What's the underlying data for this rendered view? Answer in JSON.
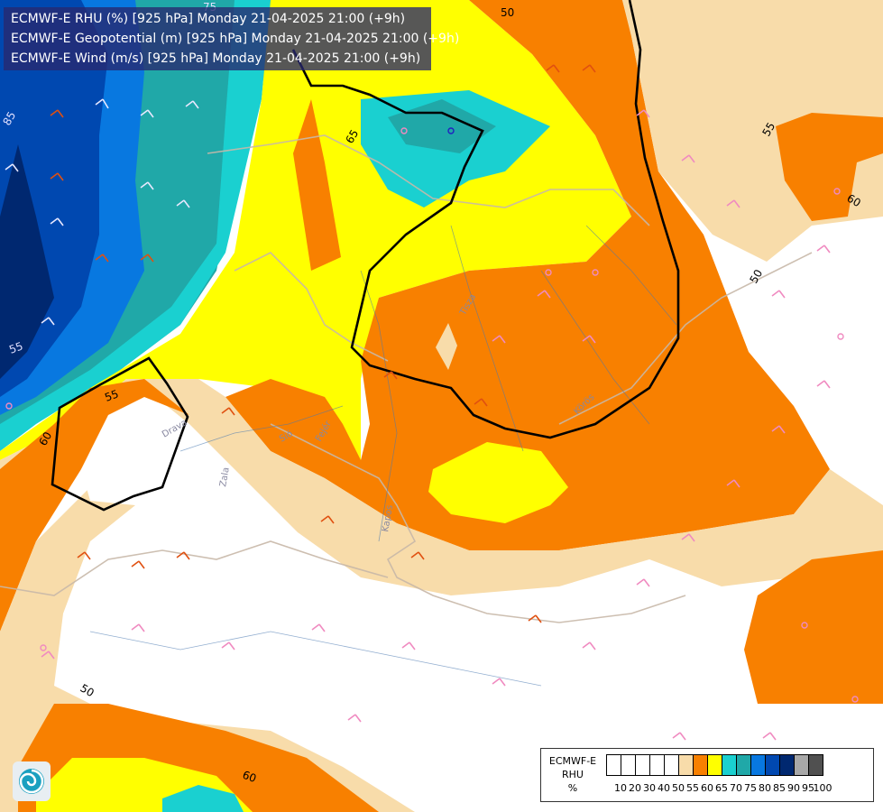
{
  "header": {
    "lines": [
      "ECMWF-E RHU (%) [925 hPa] Monday 21-04-2025 21:00 (+9h)",
      "ECMWF-E Geopotential (m) [925 hPa] Monday 21-04-2025 21:00 (+9h)",
      "ECMWF-E Wind (m/s) [925 hPa] Monday 21-04-2025 21:00 (+9h)"
    ]
  },
  "map": {
    "contour_labels": [
      "50",
      "65",
      "55",
      "50",
      "60",
      "55",
      "60",
      "50",
      "60",
      "85",
      "75",
      "55"
    ],
    "river_labels": [
      "Drava",
      "Tisza",
      "Körös",
      "Zala",
      "Sió",
      "Fejér",
      "Kapos"
    ]
  },
  "legend": {
    "title_lines": [
      "ECMWF-E",
      "RHU",
      "%"
    ],
    "ticks": [
      "10",
      "20",
      "30",
      "40",
      "50",
      "55",
      "60",
      "65",
      "70",
      "75",
      "80",
      "85",
      "90",
      "95",
      "100"
    ],
    "colors": [
      "#ffffff",
      "#ffffff",
      "#ffffff",
      "#ffffff",
      "#ffffff",
      "#f8dcaa",
      "#f88000",
      "#ffff00",
      "#1ad0d0",
      "#20a8a8",
      "#0878e0",
      "#0048b0",
      "#002870",
      "#a8a8a8",
      "#505050"
    ]
  },
  "icons": {
    "logo": "ecmwf-spiral-logo"
  }
}
